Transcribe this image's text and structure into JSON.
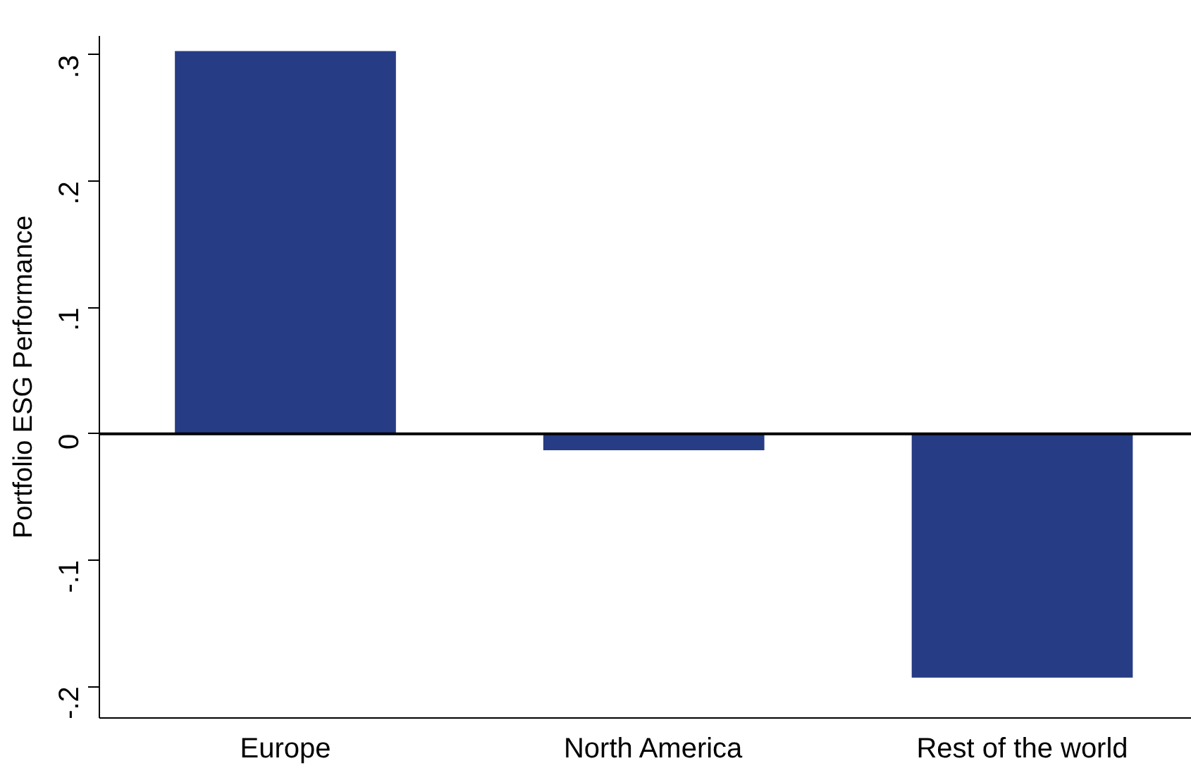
{
  "chart_data": {
    "type": "bar",
    "ylabel": "Portfolio ESG Performance",
    "categories": [
      "Europe",
      "North America",
      "Rest of the world"
    ],
    "values": [
      0.303,
      -0.013,
      -0.193
    ],
    "color": "#263c84",
    "ylim": [
      -0.225,
      0.315
    ],
    "yticks": [
      {
        "value": -0.2,
        "label": "-.2"
      },
      {
        "value": -0.1,
        "label": "-.1"
      },
      0,
      {
        "value": 0.1,
        "label": ".1"
      },
      {
        "value": 0.2,
        "label": ".2"
      },
      {
        "value": 0.3,
        "label": ".3"
      }
    ],
    "ref_lines": [
      {
        "axis": "y",
        "value": 0,
        "color": "#000000"
      }
    ],
    "grid": false
  }
}
